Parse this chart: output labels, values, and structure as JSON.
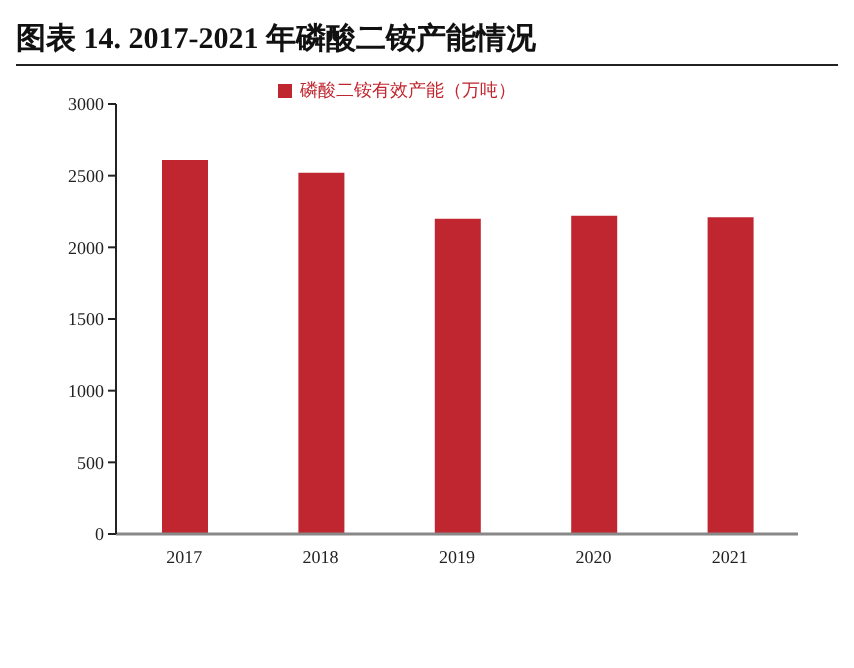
{
  "chart_data": {
    "type": "bar",
    "title": "图表 14. 2017-2021 年磷酸二铵产能情况",
    "categories": [
      "2017",
      "2018",
      "2019",
      "2020",
      "2021"
    ],
    "series": [
      {
        "name": "磷酸二铵有效产能（万吨）",
        "color": "#c0262f",
        "values": [
          2610,
          2520,
          2200,
          2220,
          2210
        ]
      }
    ],
    "ylim": [
      0,
      3000
    ],
    "yticks": [
      0,
      500,
      1000,
      1500,
      2000,
      2500,
      3000
    ],
    "grid": false,
    "legend": "top"
  }
}
